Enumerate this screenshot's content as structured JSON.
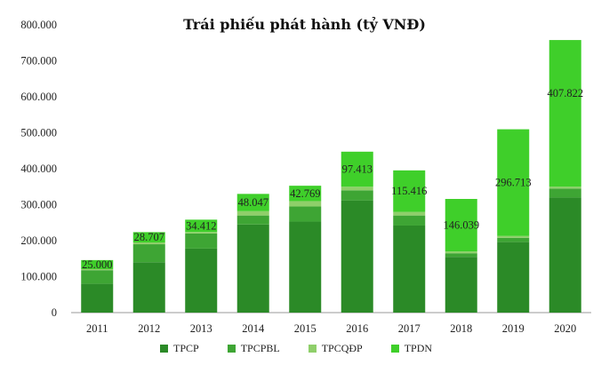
{
  "chart_data": {
    "type": "bar",
    "stacked": true,
    "title": "Trái phiếu phát hành (tỷ VNĐ)",
    "xlabel": "",
    "ylabel": "",
    "ylim": [
      0,
      800000
    ],
    "y_ticks": [
      "0",
      "100.000",
      "200.000",
      "300.000",
      "400.000",
      "500.000",
      "600.000",
      "700.000",
      "800.000"
    ],
    "y_tick_values": [
      0,
      100000,
      200000,
      300000,
      400000,
      500000,
      600000,
      700000,
      800000
    ],
    "categories": [
      "2011",
      "2012",
      "2013",
      "2014",
      "2015",
      "2016",
      "2017",
      "2018",
      "2019",
      "2020"
    ],
    "grid": false,
    "legend_position": "bottom",
    "series": [
      {
        "name": "TPCP",
        "color": "#2b8a27",
        "values": [
          80000,
          140000,
          178000,
          245000,
          253000,
          312000,
          242000,
          155000,
          196000,
          320000
        ]
      },
      {
        "name": "TPCPBL",
        "color": "#3ea534",
        "values": [
          38000,
          50000,
          42000,
          25000,
          42000,
          28000,
          28000,
          10000,
          12000,
          25000
        ]
      },
      {
        "name": "TPCQĐP",
        "color": "#8fcf6a",
        "values": [
          3000,
          5000,
          4000,
          12000,
          15000,
          10000,
          10000,
          5000,
          5000,
          5000
        ]
      },
      {
        "name": "TPDN",
        "color": "#3fcf2a",
        "values": [
          25000,
          28707,
          34412,
          48047,
          42769,
          97413,
          115416,
          146039,
          296713,
          407822
        ]
      }
    ],
    "data_labels": [
      "25.000",
      "28.707",
      "34.412",
      "48.047",
      "42.769",
      "97.413",
      "115.416",
      "146.039",
      "296.713",
      "407.822"
    ]
  }
}
